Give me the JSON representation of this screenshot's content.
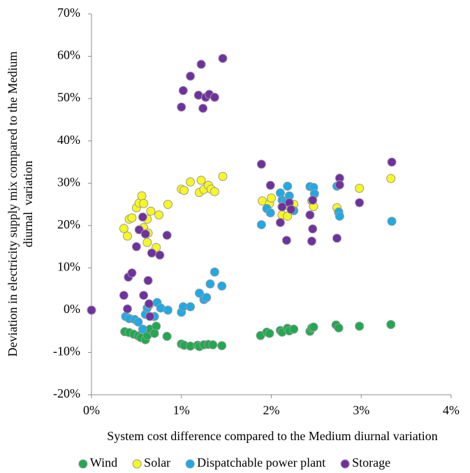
{
  "chart_data": {
    "type": "scatter",
    "xlabel": "System cost difference compared to the Medium diurnal variation",
    "ylabel": [
      "Deviation in electricity supply mix compared to the Medium",
      "diurnal  variation"
    ],
    "xlim": [
      0,
      4
    ],
    "ylim": [
      -20,
      70
    ],
    "xticks": [
      {
        "value": 0,
        "label": "0%"
      },
      {
        "value": 1,
        "label": "1%"
      },
      {
        "value": 2,
        "label": "2%"
      },
      {
        "value": 3,
        "label": "3%"
      },
      {
        "value": 4,
        "label": "4%"
      }
    ],
    "yticks": [
      {
        "value": -20,
        "label": "-20%"
      },
      {
        "value": -10,
        "label": "-10%"
      },
      {
        "value": 0,
        "label": "0%"
      },
      {
        "value": 10,
        "label": "10%"
      },
      {
        "value": 20,
        "label": "20%"
      },
      {
        "value": 30,
        "label": "30%"
      },
      {
        "value": 40,
        "label": "40%"
      },
      {
        "value": 50,
        "label": "50%"
      },
      {
        "value": 60,
        "label": "60%"
      },
      {
        "value": 70,
        "label": "70%"
      }
    ],
    "legend": "bottom",
    "series": [
      {
        "name": "Wind",
        "color": "#1faa4f",
        "x": [
          0.37,
          0.42,
          0.47,
          0.52,
          0.55,
          0.6,
          0.62,
          0.65,
          0.72,
          0.7,
          0.84,
          1.0,
          1.03,
          1.1,
          1.18,
          1.2,
          1.25,
          1.3,
          1.35,
          1.45,
          1.88,
          1.95,
          1.98,
          2.1,
          2.12,
          2.18,
          2.2,
          2.25,
          2.43,
          2.45,
          2.47,
          2.72,
          2.75,
          2.98,
          3.33,
          0
        ],
        "values": [
          -5.1,
          -5.3,
          -5.7,
          -6.1,
          -6.5,
          -7,
          -6,
          -4.5,
          -3.8,
          -5.5,
          -6.2,
          -8,
          -8.3,
          -8.5,
          -8.3,
          -8.6,
          -8.2,
          -8.1,
          -8.2,
          -8.4,
          -6,
          -5.2,
          -5.5,
          -4.8,
          -5.2,
          -4.3,
          -4.9,
          -4.5,
          -5,
          -4.2,
          -4,
          -3.5,
          -4.2,
          -3.8,
          -3.4,
          0
        ]
      },
      {
        "name": "Solar",
        "color": "#f7f722",
        "x": [
          0.36,
          0.4,
          0.42,
          0.45,
          0.5,
          0.53,
          0.56,
          0.58,
          0.58,
          0.62,
          0.63,
          0.62,
          0.66,
          0.72,
          0.75,
          0.85,
          1.0,
          1.03,
          1.1,
          1.2,
          1.22,
          1.25,
          1.3,
          1.33,
          1.37,
          1.46,
          1.9,
          1.98,
          2.0,
          2.12,
          2.18,
          2.2,
          2.25,
          2.45,
          2.47,
          2.73,
          2.75,
          2.98,
          3.33,
          0
        ],
        "values": [
          19.3,
          17.5,
          21.5,
          21.8,
          24.2,
          25.3,
          27,
          25.2,
          19.5,
          21.5,
          18.2,
          16,
          23.4,
          14.8,
          22.5,
          25,
          28.6,
          28.3,
          30.3,
          27.8,
          30.7,
          28.5,
          29.5,
          28.6,
          28,
          31.6,
          25.8,
          25.2,
          26.5,
          22.5,
          22.2,
          24.5,
          25,
          25.8,
          24.5,
          24.2,
          23,
          28.8,
          31.1,
          0
        ]
      },
      {
        "name": "Dispatchable power plant",
        "color": "#1eaae6",
        "x": [
          0.38,
          0.42,
          0.48,
          0.52,
          0.57,
          0.6,
          0.62,
          0.64,
          0.7,
          0.73,
          0.77,
          0.85,
          1.0,
          1.02,
          1.1,
          1.2,
          1.25,
          1.28,
          1.32,
          1.37,
          1.45,
          1.89,
          1.95,
          1.99,
          2.1,
          2.12,
          2.15,
          2.18,
          2.2,
          2.25,
          2.43,
          2.47,
          2.48,
          2.73,
          2.75,
          2.76,
          3.34,
          0
        ],
        "values": [
          -1.5,
          -2,
          -2.2,
          -2.8,
          -4.5,
          -1,
          0.5,
          1.2,
          -1.5,
          1.8,
          0.5,
          0,
          -0.5,
          0.8,
          0.8,
          4,
          2.5,
          3,
          6.2,
          9,
          5.7,
          20.2,
          24,
          23,
          27.7,
          26,
          25.5,
          29.3,
          27,
          23.5,
          29.2,
          29,
          27.5,
          29.3,
          23.2,
          22.2,
          21,
          0
        ]
      },
      {
        "name": "Storage",
        "color": "#7030a0",
        "x": [
          0.36,
          0.4,
          0.41,
          0.45,
          0.5,
          0.53,
          0.57,
          0.58,
          0.6,
          0.63,
          0.64,
          0.65,
          0.67,
          0.76,
          0.84,
          1.0,
          1.02,
          1.1,
          1.19,
          1.22,
          1.24,
          1.27,
          1.31,
          1.37,
          1.46,
          1.89,
          1.99,
          2.1,
          2.12,
          2.17,
          2.2,
          2.22,
          2.43,
          2.46,
          2.45,
          2.46,
          2.73,
          2.76,
          2.76,
          2.98,
          3.34,
          0
        ],
        "values": [
          3.5,
          0.3,
          7.8,
          8.8,
          15,
          19,
          22,
          3.5,
          18,
          7,
          1.5,
          -1.5,
          13.5,
          13,
          17.7,
          48,
          51.9,
          55.3,
          50.8,
          58.1,
          47.7,
          50.3,
          51,
          50.3,
          59.5,
          34.5,
          29.5,
          20.7,
          24.4,
          16.5,
          25.4,
          23.8,
          22.5,
          19.2,
          16.3,
          26,
          17,
          31.2,
          29.6,
          25.4,
          35,
          0
        ]
      }
    ]
  }
}
